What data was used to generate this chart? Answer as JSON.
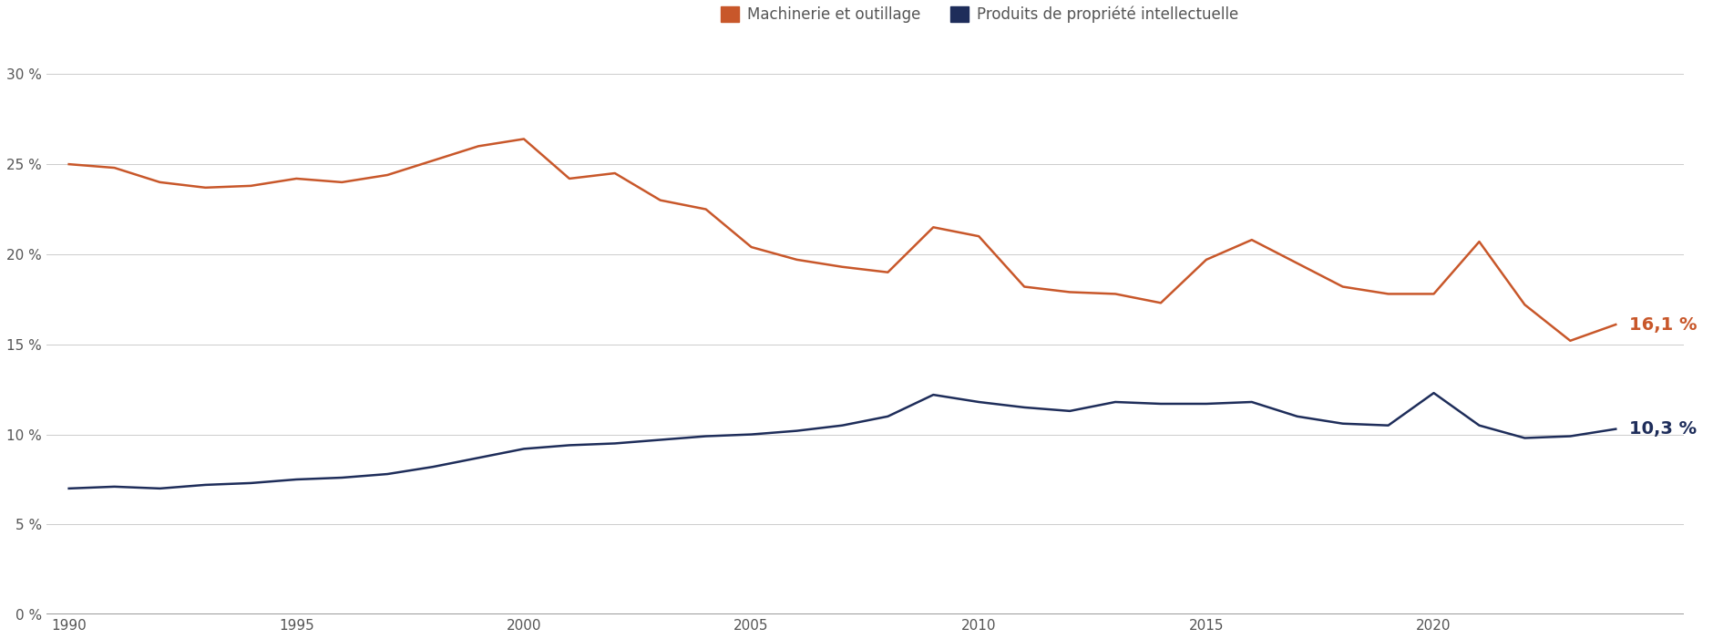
{
  "machinery_x": [
    1990,
    1991,
    1992,
    1993,
    1994,
    1995,
    1996,
    1997,
    1998,
    1999,
    2000,
    2001,
    2002,
    2003,
    2004,
    2005,
    2006,
    2007,
    2008,
    2009,
    2010,
    2011,
    2012,
    2013,
    2014,
    2015,
    2016,
    2017,
    2018,
    2019,
    2020,
    2021,
    2022,
    2023,
    2024
  ],
  "machinery_y": [
    25.0,
    24.8,
    24.0,
    23.7,
    23.8,
    24.2,
    24.0,
    24.4,
    25.2,
    26.0,
    26.4,
    24.2,
    24.5,
    23.0,
    22.5,
    20.4,
    19.7,
    19.3,
    19.0,
    21.5,
    21.0,
    18.2,
    17.9,
    17.8,
    17.3,
    19.7,
    20.8,
    19.5,
    18.2,
    17.8,
    17.8,
    20.7,
    17.2,
    15.2,
    16.1
  ],
  "ip_x": [
    1990,
    1991,
    1992,
    1993,
    1994,
    1995,
    1996,
    1997,
    1998,
    1999,
    2000,
    2001,
    2002,
    2003,
    2004,
    2005,
    2006,
    2007,
    2008,
    2009,
    2010,
    2011,
    2012,
    2013,
    2014,
    2015,
    2016,
    2017,
    2018,
    2019,
    2020,
    2021,
    2022,
    2023,
    2024
  ],
  "ip_y": [
    7.0,
    7.1,
    7.0,
    7.2,
    7.3,
    7.5,
    7.6,
    7.8,
    8.2,
    8.7,
    9.2,
    9.4,
    9.5,
    9.7,
    9.9,
    10.0,
    10.2,
    10.5,
    11.0,
    12.2,
    11.8,
    11.5,
    11.3,
    11.8,
    11.7,
    11.7,
    11.8,
    11.0,
    10.6,
    10.5,
    12.3,
    10.5,
    9.8,
    9.9,
    10.3
  ],
  "machinery_color": "#C8572A",
  "ip_color": "#1E2D5A",
  "machinery_label": "Machinerie et outillage",
  "ip_label": "Produits de propriété intellectuelle",
  "machinery_end_label": "16,1 %",
  "ip_end_label": "10,3 %",
  "yticks": [
    0,
    5,
    10,
    15,
    20,
    25,
    30
  ],
  "ytick_labels": [
    "0 %",
    "5 %",
    "10 %",
    "15 %",
    "20 %",
    "25 %",
    "30 %"
  ],
  "xticks": [
    1990,
    1995,
    2000,
    2005,
    2010,
    2015,
    2020
  ],
  "ylim": [
    0,
    32
  ],
  "xlim": [
    1989.5,
    2025.5
  ],
  "line_width": 1.8,
  "background_color": "#FFFFFF",
  "grid_color": "#CCCCCC",
  "tick_label_color": "#555555",
  "legend_marker_size": 14
}
